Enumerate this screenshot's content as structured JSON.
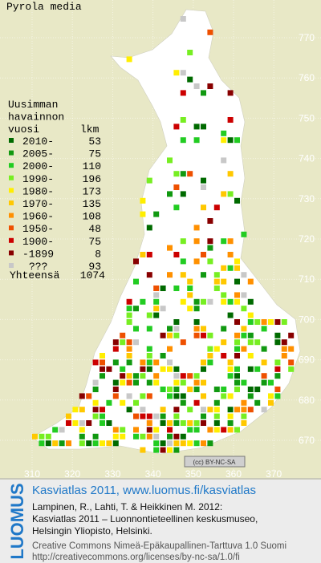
{
  "title": "Pyrola media",
  "legend": {
    "header": [
      "Uusimman",
      "havainnon",
      "vuosi"
    ],
    "count_header": "lkm",
    "items": [
      {
        "label": "2010-",
        "count": "53",
        "color": "#006a00"
      },
      {
        "label": "2005-",
        "count": "75",
        "color": "#119911"
      },
      {
        "label": "2000-",
        "count": "110",
        "color": "#22cc22"
      },
      {
        "label": "1990-",
        "count": "196",
        "color": "#77ee22"
      },
      {
        "label": "1980-",
        "count": "173",
        "color": "#ffee00"
      },
      {
        "label": "1970-",
        "count": "135",
        "color": "#ffc800"
      },
      {
        "label": "1960-",
        "count": "108",
        "color": "#ff9000"
      },
      {
        "label": "1950-",
        "count": "48",
        "color": "#ee5000"
      },
      {
        "label": "1900-",
        "count": "75",
        "color": "#cc0000"
      },
      {
        "label": "-1899",
        "count": "8",
        "color": "#880000"
      },
      {
        "label": "???",
        "count": "93",
        "color": "#c8c8c8"
      }
    ],
    "total_label": "Yhteensä",
    "total": "1074"
  },
  "map": {
    "x_ticks": [
      310,
      320,
      330,
      340,
      350,
      360,
      370
    ],
    "y_ticks": [
      670,
      680,
      690,
      700,
      710,
      720,
      730,
      740,
      750,
      760,
      770
    ],
    "license_badge": "(cc) BY-NC-SA"
  },
  "footer": {
    "brand": "LUOMUS",
    "headline": "Kasviatlas 2011, www.luomus.fi/kasviatlas",
    "citation": [
      "Lampinen, R., Lahti, T. & Heikkinen M. 2012:",
      "Kasviatlas 2011 – Luonnontieteellinen keskusmuseo,",
      "Helsingin Yliopisto, Helsinki."
    ],
    "license": [
      "Creative Commons Nimeä-Epäkaupallinen-Tarttuva 1.0 Suomi",
      "http://creativecommons.org/licenses/by-nc-sa/1.0/fi"
    ]
  }
}
